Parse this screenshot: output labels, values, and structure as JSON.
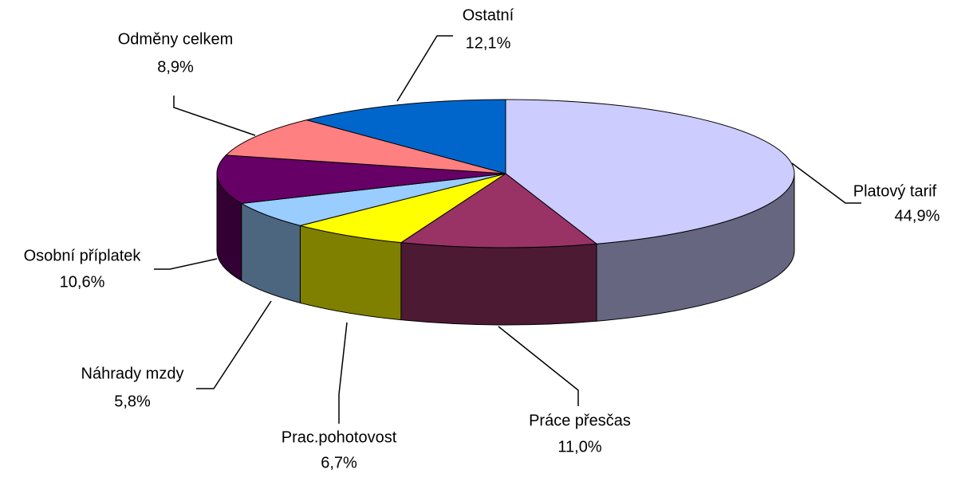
{
  "chart_data": {
    "type": "pie3d",
    "categories": [
      "Platový tarif",
      "Práce přesčas",
      "Prac.pohotovost",
      "Náhrady mzdy",
      "Osobní příplatek",
      "Odměny celkem",
      "Ostatní"
    ],
    "values": [
      44.9,
      11.0,
      6.7,
      5.8,
      10.6,
      8.9,
      12.1
    ],
    "value_labels": [
      "44,9%",
      "11,0%",
      "6,7%",
      "5,8%",
      "10,6%",
      "8,9%",
      "12,1%"
    ],
    "colors": [
      "#ccccff",
      "#993366",
      "#ffff00",
      "#99ccff",
      "#660066",
      "#ff8080",
      "#0066cc"
    ]
  }
}
